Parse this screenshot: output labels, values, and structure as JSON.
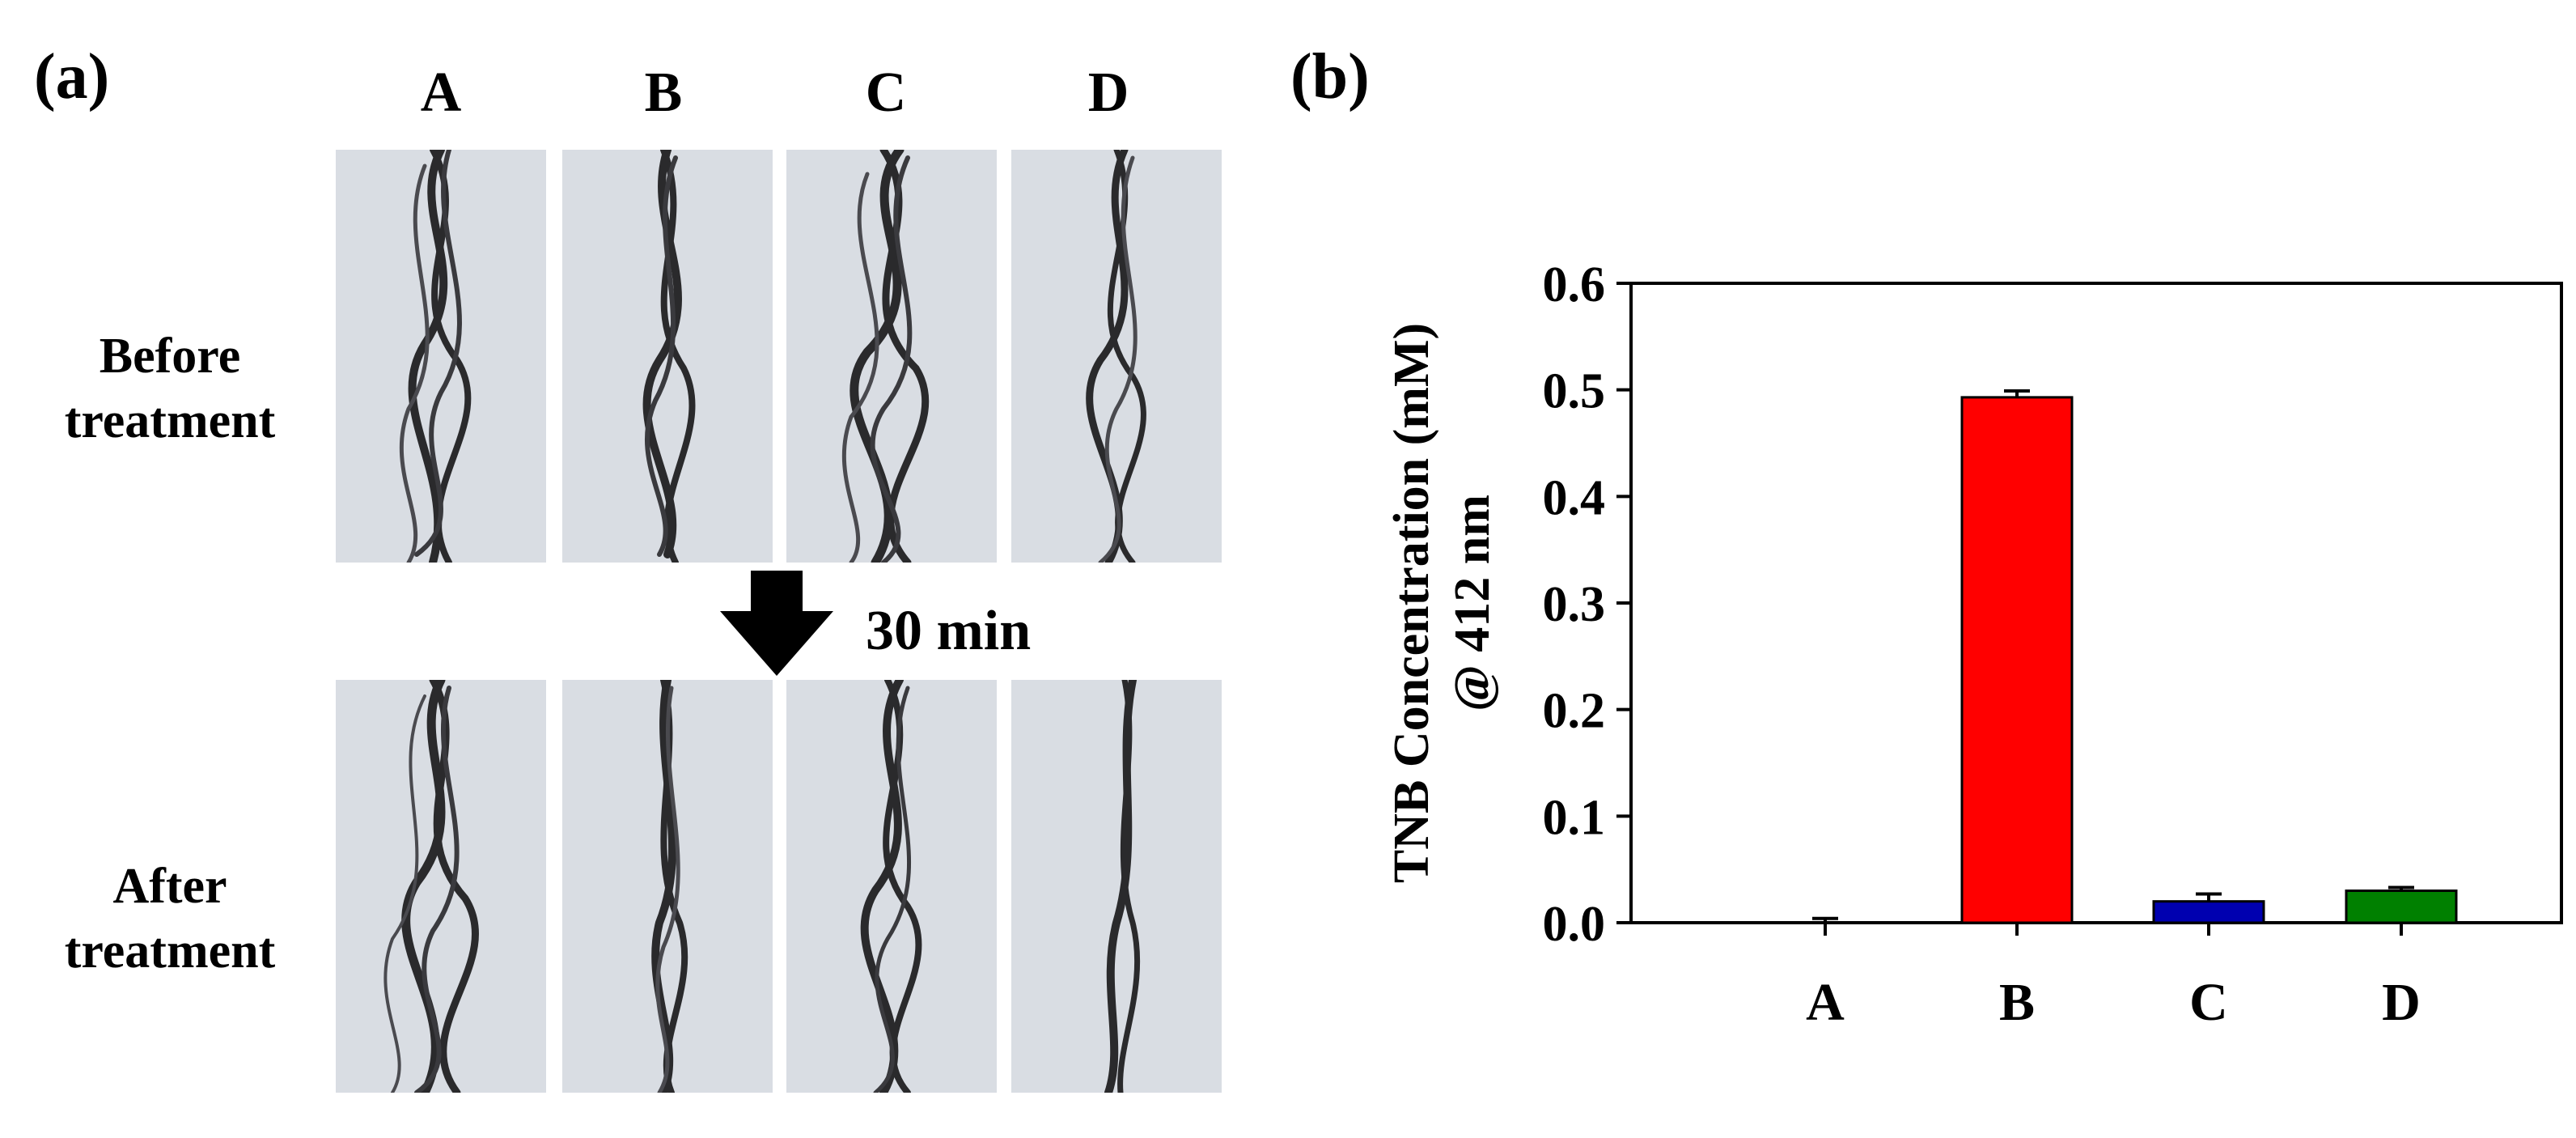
{
  "panel_a": {
    "label": "(a)",
    "columns": [
      "A",
      "B",
      "C",
      "D"
    ],
    "rows": [
      "Before\ntreatment",
      "After\ntreatment"
    ],
    "arrow_label": "30 min"
  },
  "panel_b": {
    "label": "(b)"
  },
  "chart_data": {
    "type": "bar",
    "categories": [
      "A",
      "B",
      "C",
      "D"
    ],
    "values": [
      0.0,
      0.493,
      0.02,
      0.03
    ],
    "errors": [
      0.004,
      0.006,
      0.007,
      0.003
    ],
    "colors": [
      "#7f7f7f",
      "#ff0000",
      "#0000b0",
      "#008000"
    ],
    "ylabel_line1": "TNB Concentration (mM)",
    "ylabel_line2": "@ 412 nm",
    "xlabel": "",
    "ylim": [
      0,
      0.6
    ],
    "yticks": [
      "0.0",
      "0.1",
      "0.2",
      "0.3",
      "0.4",
      "0.5",
      "0.6"
    ],
    "grid": false
  }
}
